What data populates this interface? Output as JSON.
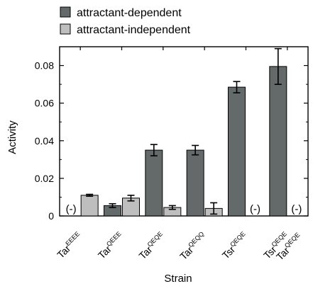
{
  "chart_data": {
    "type": "bar",
    "xlabel": "Strain",
    "ylabel": "Activity",
    "ylim": [
      0,
      0.09
    ],
    "y_ticks": [
      0,
      0.02,
      0.04,
      0.06,
      0.08
    ],
    "y_tick_labels": [
      "0",
      "0.02",
      "0.04",
      "0.06",
      "0.08"
    ],
    "legend_position": "top-left, above plot",
    "categories": [
      {
        "base": "Tar",
        "sup": "EEEE"
      },
      {
        "base": "Tar",
        "sup": "QEEE"
      },
      {
        "base": "Tar",
        "sup": "QEQE"
      },
      {
        "base": "Tar",
        "sup": "QEQQ"
      },
      {
        "base": "Tsr",
        "sup": "QEQE"
      },
      {
        "base": "Tsr",
        "sup": "QEQE",
        "line2_base": "Tar",
        "line2_sup": "QEQE"
      }
    ],
    "series": [
      {
        "name": "attractant-dependent",
        "color": "#646a6a",
        "values": [
          null,
          0.0055,
          0.035,
          0.035,
          0.0685,
          0.0795
        ],
        "errors": [
          null,
          0.001,
          0.003,
          0.0025,
          0.003,
          0.0095
        ],
        "missing_labels": [
          "(-)",
          null,
          null,
          null,
          null,
          null
        ]
      },
      {
        "name": "attractant-independent",
        "color": "#bebebe",
        "values": [
          0.011,
          0.0095,
          0.0045,
          0.004,
          null,
          null
        ],
        "errors": [
          0.0005,
          0.0015,
          0.001,
          0.003,
          null,
          null
        ],
        "missing_labels": [
          null,
          null,
          null,
          null,
          "(-)",
          "(-)"
        ]
      }
    ]
  }
}
